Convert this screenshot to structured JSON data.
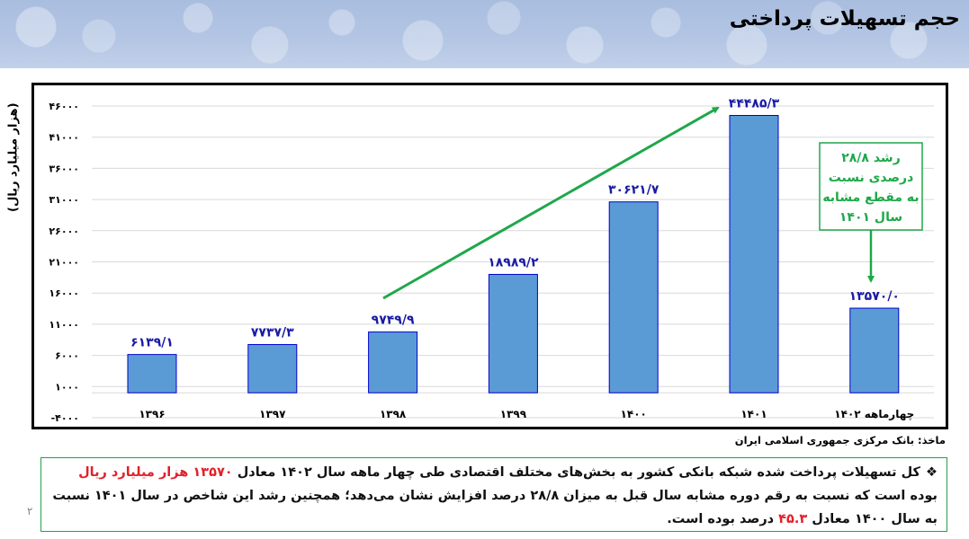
{
  "header": {
    "title": "حجم تسهیلات پرداختی"
  },
  "chart_data": {
    "type": "bar",
    "title": "حجم تسهیلات پرداختی",
    "xlabel": "",
    "ylabel": "(هزار میلیارد ریال)",
    "categories": [
      "۱۳۹۶",
      "۱۳۹۷",
      "۱۳۹۸",
      "۱۳۹۹",
      "۱۴۰۰",
      "۱۴۰۱",
      "چهارماهه ۱۴۰۲"
    ],
    "values": [
      6139.1,
      7737.3,
      9749.9,
      18989.2,
      30621.7,
      44485.3,
      13570.0
    ],
    "value_labels": [
      "۶۱۳۹/۱",
      "۷۷۳۷/۳",
      "۹۷۴۹/۹",
      "۱۸۹۸۹/۲",
      "۳۰۶۲۱/۷",
      "۴۴۴۸۵/۳",
      "۱۳۵۷۰/۰"
    ],
    "ylim": [
      -4000,
      46000
    ],
    "y_ticks": [
      -4000,
      1000,
      6000,
      11000,
      16000,
      21000,
      26000,
      31000,
      36000,
      41000,
      46000
    ],
    "y_tick_labels": [
      "-۴۰۰۰",
      "۱۰۰۰",
      "۶۰۰۰",
      "۱۱۰۰۰",
      "۱۶۰۰۰",
      "۲۱۰۰۰",
      "۲۶۰۰۰",
      "۳۱۰۰۰",
      "۳۶۰۰۰",
      "۴۱۰۰۰",
      "۴۶۰۰۰"
    ],
    "grid": true,
    "legend": "none",
    "bar_color": "#5b9bd5",
    "bar_edge_color": "#0000cc",
    "label_color": "#1a1aa6",
    "annotations": [
      {
        "type": "arrow",
        "from_category": "۱۳۹۸",
        "to_category": "۱۴۰۱",
        "color": "#1ea84a"
      },
      {
        "type": "callout",
        "text_lines": [
          "رشد ۲۸/۸",
          "درصدی نسبت",
          "به مقطع مشابه",
          "سال ۱۴۰۱"
        ],
        "points_to": "چهارماهه ۱۴۰۲",
        "color": "#1ea84a"
      }
    ]
  },
  "callout": {
    "lines": [
      "رشد ۲۸/۸",
      "درصدی نسبت",
      "به مقطع مشابه",
      "سال ۱۴۰۱"
    ]
  },
  "source": "ماخذ: بانک مرکزی جمهوری اسلامی ایران",
  "note": {
    "bullet": "❖",
    "part1": "کل تسهیلات پرداخت شده شبکه بانکی کشور به بخش‌های مختلف اقتصادی طی چهار ماهه سال ۱۴۰۲ معادل ",
    "highlight1": "۱۳۵۷۰ هزار میلیارد ریال",
    "part2": " بوده است که نسبت به رقم دوره مشابه سال قبل به میزان ۲۸/۸ درصد افزایش نشان می‌دهد؛ همچنین رشد این شاخص در سال ۱۴۰۱ نسبت به سال ۱۴۰۰ معادل ",
    "highlight2": "۴۵.۳",
    "part3": " درصد بوده است."
  },
  "page_number": "۲",
  "colors": {
    "accent_green": "#1ea84a",
    "highlight_red": "#e3202a",
    "bar_fill": "#5b9bd5",
    "label_blue": "#1a1aa6"
  }
}
